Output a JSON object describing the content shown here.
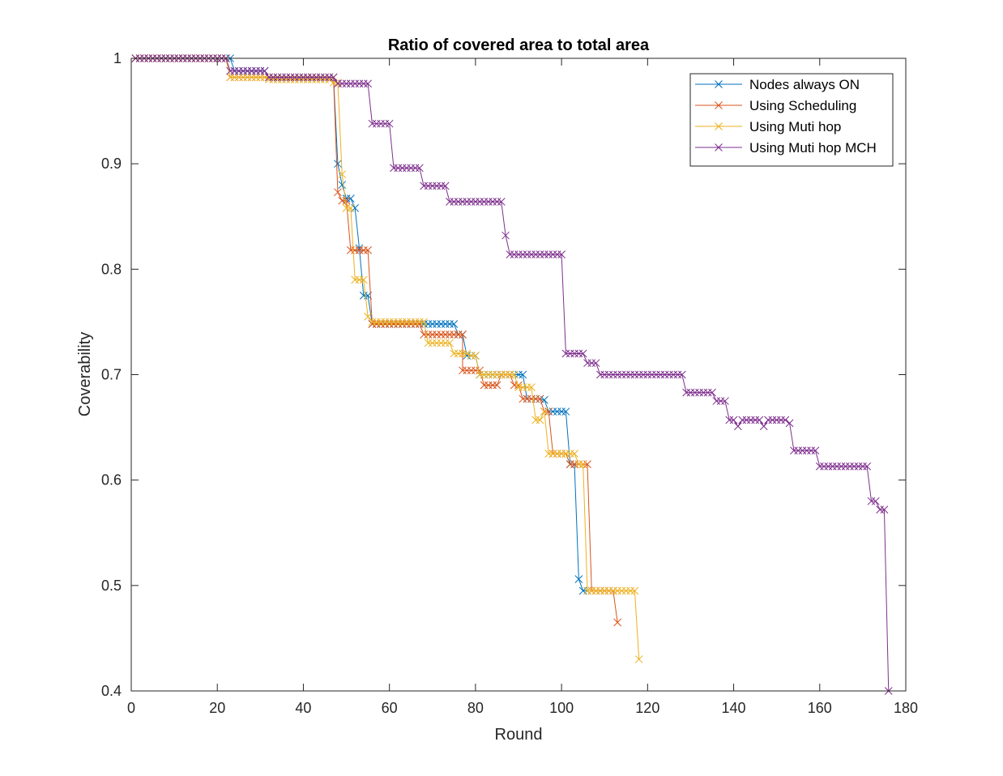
{
  "chart_data": {
    "type": "line",
    "title": "Ratio of covered area to total area",
    "xlabel": "Round",
    "ylabel": "Coverability",
    "xlim": [
      0,
      180
    ],
    "ylim": [
      0.4,
      1
    ],
    "xticks": [
      0,
      20,
      40,
      60,
      80,
      100,
      120,
      140,
      160,
      180
    ],
    "yticks": [
      0.4,
      0.5,
      0.6,
      0.7,
      0.8,
      0.9,
      1
    ],
    "xtick_labels": [
      "0",
      "20",
      "40",
      "60",
      "80",
      "100",
      "120",
      "140",
      "160",
      "180"
    ],
    "ytick_labels": [
      "0.4",
      "0.5",
      "0.6",
      "0.7",
      "0.8",
      "0.9",
      "1"
    ],
    "grid": false,
    "marker": "x",
    "legend_position": "top-right",
    "series": [
      {
        "name": "Nodes always ON",
        "color": "#0072BD",
        "segments": [
          [
            1,
            22,
            1.0
          ],
          [
            23,
            23,
            1.0
          ],
          [
            24,
            31,
            0.988
          ],
          [
            32,
            47,
            0.982
          ],
          [
            48,
            48,
            0.9
          ],
          [
            49,
            49,
            0.88
          ],
          [
            50,
            51,
            0.867
          ],
          [
            52,
            52,
            0.858
          ],
          [
            53,
            53,
            0.82
          ],
          [
            54,
            54,
            0.775
          ],
          [
            55,
            55,
            0.775
          ],
          [
            56,
            75,
            0.748
          ],
          [
            76,
            76,
            0.738
          ],
          [
            77,
            77,
            0.738
          ],
          [
            78,
            80,
            0.718
          ],
          [
            81,
            90,
            0.7
          ],
          [
            91,
            91,
            0.7
          ],
          [
            92,
            95,
            0.677
          ],
          [
            96,
            96,
            0.676
          ],
          [
            97,
            101,
            0.665
          ],
          [
            102,
            103,
            0.615
          ],
          [
            104,
            104,
            0.506
          ],
          [
            105,
            106,
            0.495
          ]
        ]
      },
      {
        "name": "Using Scheduling",
        "color": "#D95319",
        "segments": [
          [
            1,
            22,
            1.0
          ],
          [
            23,
            31,
            0.982
          ],
          [
            32,
            47,
            0.982
          ],
          [
            48,
            48,
            0.873
          ],
          [
            49,
            50,
            0.865
          ],
          [
            51,
            55,
            0.818
          ],
          [
            56,
            67,
            0.748
          ],
          [
            68,
            77,
            0.738
          ],
          [
            77,
            81,
            0.704
          ],
          [
            82,
            85,
            0.69
          ],
          [
            86,
            88,
            0.7
          ],
          [
            89,
            90,
            0.69
          ],
          [
            91,
            95,
            0.677
          ],
          [
            96,
            97,
            0.665
          ],
          [
            98,
            101,
            0.625
          ],
          [
            102,
            104,
            0.615
          ],
          [
            105,
            106,
            0.615
          ],
          [
            107,
            112,
            0.495
          ],
          [
            113,
            113,
            0.465
          ]
        ]
      },
      {
        "name": "Using Muti hop",
        "color": "#EDB120",
        "segments": [
          [
            1,
            22,
            1.0
          ],
          [
            23,
            31,
            0.982
          ],
          [
            32,
            46,
            0.98
          ],
          [
            47,
            48,
            0.977
          ],
          [
            49,
            49,
            0.89
          ],
          [
            50,
            51,
            0.858
          ],
          [
            52,
            54,
            0.79
          ],
          [
            55,
            55,
            0.755
          ],
          [
            56,
            68,
            0.75
          ],
          [
            69,
            74,
            0.73
          ],
          [
            75,
            78,
            0.72
          ],
          [
            79,
            80,
            0.718
          ],
          [
            81,
            89,
            0.7
          ],
          [
            90,
            93,
            0.688
          ],
          [
            94,
            95,
            0.657
          ],
          [
            96,
            96,
            0.665
          ],
          [
            97,
            103,
            0.625
          ],
          [
            104,
            105,
            0.615
          ],
          [
            106,
            117,
            0.495
          ],
          [
            118,
            118,
            0.43
          ]
        ]
      },
      {
        "name": "Using Muti hop MCH",
        "color": "#7E2F8E",
        "segments": [
          [
            1,
            22,
            1.0
          ],
          [
            23,
            31,
            0.988
          ],
          [
            32,
            47,
            0.982
          ],
          [
            48,
            55,
            0.976
          ],
          [
            56,
            60,
            0.938
          ],
          [
            61,
            67,
            0.896
          ],
          [
            68,
            73,
            0.879
          ],
          [
            74,
            86,
            0.864
          ],
          [
            87,
            87,
            0.832
          ],
          [
            88,
            100,
            0.814
          ],
          [
            101,
            105,
            0.72
          ],
          [
            106,
            108,
            0.711
          ],
          [
            109,
            127,
            0.7
          ],
          [
            128,
            128,
            0.7
          ],
          [
            129,
            135,
            0.683
          ],
          [
            136,
            138,
            0.675
          ],
          [
            139,
            140,
            0.657
          ],
          [
            141,
            141,
            0.651
          ],
          [
            142,
            146,
            0.657
          ],
          [
            147,
            147,
            0.651
          ],
          [
            148,
            152,
            0.657
          ],
          [
            153,
            153,
            0.654
          ],
          [
            154,
            159,
            0.628
          ],
          [
            160,
            171,
            0.613
          ],
          [
            172,
            173,
            0.58
          ],
          [
            174,
            175,
            0.572
          ],
          [
            176,
            176,
            0.4
          ]
        ]
      }
    ]
  }
}
